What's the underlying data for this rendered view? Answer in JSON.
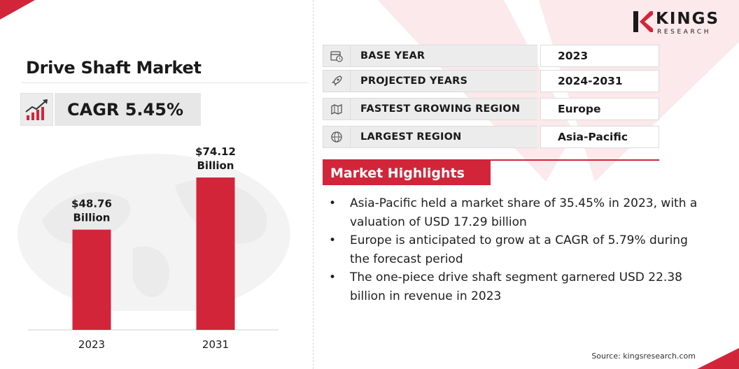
{
  "brand": {
    "name": "KINGS",
    "sub": "RESEARCH",
    "accent": "#d2253a"
  },
  "title": "Drive Shaft Market",
  "cagr": "CAGR 5.45%",
  "chart_data": {
    "type": "bar",
    "categories": [
      "2023",
      "2031"
    ],
    "values": [
      48.76,
      74.12
    ],
    "value_labels": [
      [
        "$48.76",
        "Billion"
      ],
      [
        "$74.12",
        "Billion"
      ]
    ],
    "unit": "USD Billion",
    "color": "#d2253a",
    "ylim": [
      0,
      90
    ]
  },
  "info": [
    {
      "icon": "calendar-icon",
      "label": "BASE YEAR",
      "value": "2023"
    },
    {
      "icon": "rocket-icon",
      "label": "PROJECTED YEARS",
      "value": "2024-2031"
    },
    {
      "icon": "region-map-icon",
      "label": "FASTEST GROWING REGION",
      "value": "Europe"
    },
    {
      "icon": "globe-icon",
      "label": "LARGEST REGION",
      "value": "Asia-Pacific"
    }
  ],
  "highlights": {
    "title": "Market Highlights",
    "items": [
      "Asia-Pacific held a market share of 35.45% in 2023, with a valuation of USD 17.29 billion",
      "Europe is anticipated to grow at a CAGR of 5.79% during the forecast period",
      "The one-piece drive shaft segment garnered USD 22.38 billion in revenue in 2023"
    ]
  },
  "source": "Source: kingsresearch.com"
}
